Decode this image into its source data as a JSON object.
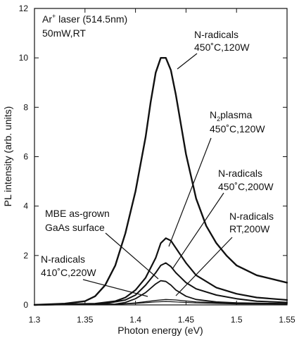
{
  "chart_data": {
    "type": "line",
    "xlabel": "Photon energy (eV)",
    "ylabel": "PL intensity (arb. units)",
    "xlim": [
      1.3,
      1.55
    ],
    "ylim": [
      0,
      12
    ],
    "xticks": [
      "1.3",
      "1.35",
      "1.4",
      "1.45",
      "1.5",
      "1.55"
    ],
    "yticks": [
      "0",
      "2",
      "4",
      "6",
      "8",
      "10",
      "12"
    ],
    "grid": false,
    "legend": "none",
    "annotations": {
      "laser_line1": "Ar",
      "laser_sup": "+",
      "laser_line1_rest": " laser (514.5nm)",
      "laser_line2": "50mW,RT",
      "s1_line1": "N-radicals",
      "s1_line2": "450˚C,120W",
      "s2_line1_a": "N",
      "s2_sub": "2",
      "s2_line1_b": "plasma",
      "s2_line2": "450˚C,120W",
      "s3_line1": "N-radicals",
      "s3_line2": "450˚C,200W",
      "s4_line1": "N-radicals",
      "s4_line2": "RT,200W",
      "s5_line1": "MBE as-grown",
      "s5_line2": "GaAs surface",
      "s6_line1": "N-radicals",
      "s6_line2": "410˚C,220W"
    },
    "series": [
      {
        "x": [
          1.3,
          1.33,
          1.35,
          1.36,
          1.37,
          1.38,
          1.39,
          1.4,
          1.41,
          1.415,
          1.42,
          1.425,
          1.43,
          1.435,
          1.44,
          1.445,
          1.45,
          1.46,
          1.47,
          1.48,
          1.49,
          1.5,
          1.52,
          1.55
        ],
        "values": [
          0.0,
          0.05,
          0.15,
          0.35,
          0.8,
          1.6,
          2.9,
          4.6,
          6.8,
          8.2,
          9.4,
          10.0,
          10.0,
          9.5,
          8.5,
          7.3,
          6.1,
          4.3,
          3.2,
          2.5,
          2.0,
          1.6,
          1.2,
          0.9
        ]
      },
      {
        "x": [
          1.3,
          1.36,
          1.38,
          1.39,
          1.4,
          1.41,
          1.42,
          1.425,
          1.43,
          1.435,
          1.44,
          1.45,
          1.46,
          1.48,
          1.5,
          1.52,
          1.55
        ],
        "values": [
          0.0,
          0.05,
          0.15,
          0.3,
          0.6,
          1.1,
          1.9,
          2.5,
          2.7,
          2.6,
          2.3,
          1.7,
          1.2,
          0.7,
          0.45,
          0.3,
          0.2
        ]
      },
      {
        "x": [
          1.3,
          1.37,
          1.39,
          1.4,
          1.41,
          1.42,
          1.425,
          1.43,
          1.435,
          1.44,
          1.45,
          1.46,
          1.48,
          1.5,
          1.52,
          1.55
        ],
        "values": [
          0.0,
          0.05,
          0.2,
          0.4,
          0.8,
          1.3,
          1.6,
          1.7,
          1.55,
          1.3,
          0.9,
          0.65,
          0.4,
          0.25,
          0.15,
          0.1
        ]
      },
      {
        "x": [
          1.3,
          1.38,
          1.39,
          1.4,
          1.41,
          1.42,
          1.425,
          1.43,
          1.435,
          1.44,
          1.45,
          1.46,
          1.48,
          1.5,
          1.55
        ],
        "values": [
          0.0,
          0.03,
          0.1,
          0.25,
          0.5,
          0.85,
          0.98,
          0.95,
          0.8,
          0.6,
          0.35,
          0.22,
          0.12,
          0.08,
          0.05
        ]
      },
      {
        "x": [
          1.3,
          1.38,
          1.4,
          1.42,
          1.43,
          1.44,
          1.46,
          1.5,
          1.55
        ],
        "values": [
          0.0,
          0.02,
          0.08,
          0.18,
          0.22,
          0.2,
          0.12,
          0.06,
          0.04
        ]
      },
      {
        "x": [
          1.3,
          1.38,
          1.4,
          1.42,
          1.43,
          1.44,
          1.46,
          1.5,
          1.55
        ],
        "values": [
          0.0,
          0.02,
          0.06,
          0.12,
          0.14,
          0.12,
          0.08,
          0.04,
          0.03
        ]
      }
    ]
  }
}
